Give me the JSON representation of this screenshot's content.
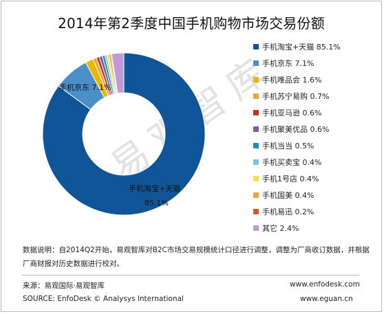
{
  "title": "2014年第2季度中国手机购物市场交易份额",
  "watermark": "易观智库",
  "note": "数据说明：自2014Q2开始，易观智库对B2C市场交易规模统计口径进行调整，调整为厂商收订数据，并根据厂商财报对历史数据进行校对。",
  "footer": {
    "source_cn": "来源：易观国际·易观智库",
    "source_en": "SOURCE: EnfoDesk © Analysys International",
    "url1": "www.enfodesk.com",
    "url2": "www.eguan.cn"
  },
  "chart_data": {
    "type": "pie",
    "donut": true,
    "legend_position": "right",
    "categories": [
      "手机淘宝+天猫",
      "手机京东",
      "手机唯品会",
      "手机苏宁易购",
      "手机亚马逊",
      "手机聚美优品",
      "手机当当",
      "手机买卖宝",
      "手机1号店",
      "手机国美",
      "手机易迅",
      "其它"
    ],
    "values": [
      85.1,
      7.1,
      1.6,
      0.7,
      0.6,
      0.6,
      0.5,
      0.4,
      0.4,
      0.4,
      0.2,
      2.4
    ],
    "legend_labels": [
      "手机淘宝+天猫 85.1%",
      "手机京东 7.1%",
      "手机唯品会 1.6%",
      "手机苏宁易购 0.7%",
      "手机亚马逊 0.6%",
      "手机聚美优品 0.6%",
      "手机当当 0.5%",
      "手机买卖宝 0.4%",
      "手机1号店 0.4%",
      "手机国美 0.4%",
      "手机易迅 0.2%",
      "其它 2.4%"
    ],
    "colors": [
      "#0f5597",
      "#4a8fc7",
      "#e8b800",
      "#e9a43a",
      "#c0361b",
      "#7f5b9a",
      "#1f8fa8",
      "#7ec3e3",
      "#f4e24a",
      "#f0a238",
      "#d25a1f",
      "#c09ad6"
    ],
    "data_labels": {
      "jd": "手机京东 7.1%",
      "taobao_name": "手机淘宝+天猫",
      "taobao_value": "85.1%"
    }
  }
}
